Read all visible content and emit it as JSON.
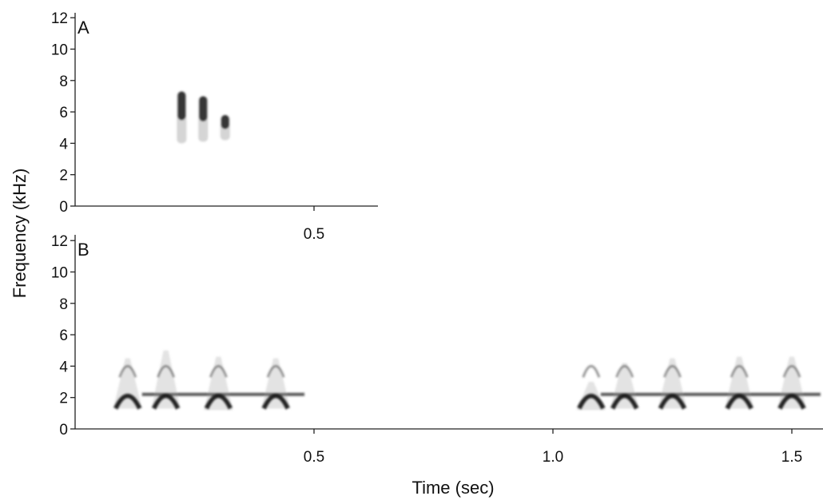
{
  "chart_data": [
    {
      "type": "heatmap",
      "panel_label": "A",
      "ylabel": "Frequency (kHz)",
      "xlim": [
        0,
        0.63
      ],
      "ylim": [
        0,
        12.5
      ],
      "y_ticks": [
        "0",
        "2",
        "4",
        "6",
        "8",
        "10",
        "12"
      ],
      "y_tick_values": [
        0,
        2,
        4,
        6,
        8,
        10,
        12
      ],
      "x_ticks": [
        "0.5"
      ],
      "x_tick_values": [
        0.5
      ],
      "notes": [
        {
          "t": 0.223,
          "f_low": 4.0,
          "f_high": 7.3
        },
        {
          "t": 0.268,
          "f_low": 4.1,
          "f_high": 7.0
        },
        {
          "t": 0.314,
          "f_low": 4.2,
          "f_high": 5.8
        }
      ]
    },
    {
      "type": "heatmap",
      "panel_label": "B",
      "xlabel": "Time (sec)",
      "ylabel": "Frequency (kHz)",
      "xlim": [
        0,
        1.56
      ],
      "ylim": [
        0,
        12.5
      ],
      "y_ticks": [
        "0",
        "2",
        "4",
        "6",
        "8",
        "10",
        "12"
      ],
      "y_tick_values": [
        0,
        2,
        4,
        6,
        8,
        10,
        12
      ],
      "x_ticks": [
        "0.5",
        "1.0",
        "1.5"
      ],
      "x_tick_values": [
        0.5,
        1.0,
        1.5
      ],
      "notes": [
        {
          "t": 0.11,
          "f_low": 1.3,
          "f_high": 4.5
        },
        {
          "t": 0.19,
          "f_low": 1.3,
          "f_high": 5.0
        },
        {
          "t": 0.3,
          "f_low": 1.2,
          "f_high": 4.6
        },
        {
          "t": 0.42,
          "f_low": 1.3,
          "f_high": 4.5
        },
        {
          "t": 1.08,
          "f_low": 1.2,
          "f_high": 3.0
        },
        {
          "t": 1.15,
          "f_low": 1.3,
          "f_high": 4.2
        },
        {
          "t": 1.25,
          "f_low": 1.3,
          "f_high": 4.5
        },
        {
          "t": 1.39,
          "f_low": 1.3,
          "f_high": 4.6
        },
        {
          "t": 1.5,
          "f_low": 1.3,
          "f_high": 4.6
        }
      ],
      "harmonic_bands": [
        {
          "t_start": 0.14,
          "t_end": 0.48,
          "freq": 2.2
        },
        {
          "t_start": 1.1,
          "t_end": 1.56,
          "freq": 2.2
        }
      ]
    }
  ]
}
